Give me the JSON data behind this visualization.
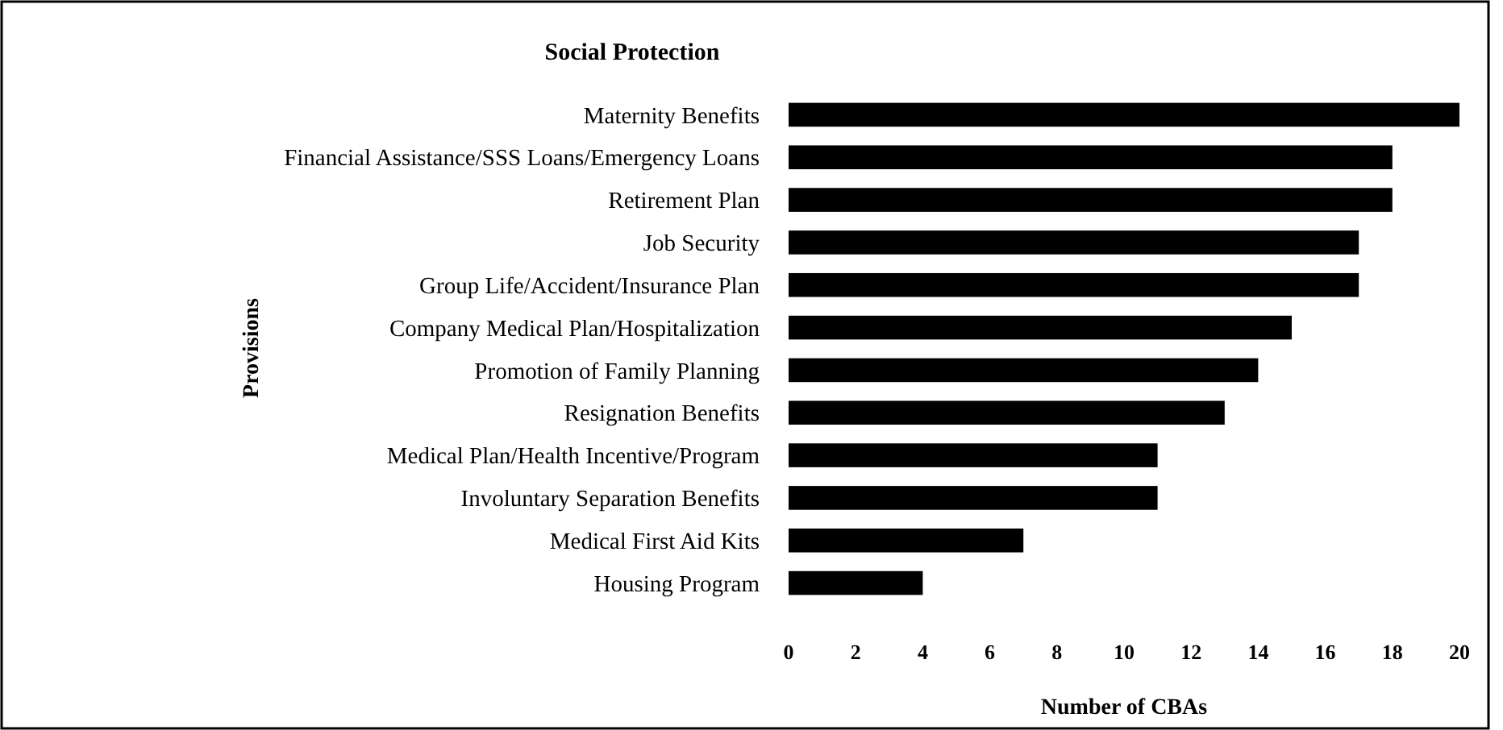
{
  "chart_data": {
    "type": "bar",
    "orientation": "horizontal",
    "title": "Social Protection",
    "xlabel": "Number of CBAs",
    "ylabel": "Provisions",
    "categories": [
      "Maternity Benefits",
      "Financial Assistance/SSS Loans/Emergency Loans",
      "Retirement Plan",
      "Job Security",
      "Group Life/Accident/Insurance Plan",
      "Company Medical Plan/Hospitalization",
      "Promotion of Family Planning",
      "Resignation Benefits",
      "Medical Plan/Health Incentive/Program",
      "Involuntary Separation Benefits",
      "Medical First Aid Kits",
      "Housing Program"
    ],
    "values": [
      20,
      18,
      18,
      17,
      17,
      15,
      14,
      13,
      11,
      11,
      7,
      4
    ],
    "color": "#000000",
    "xlim": [
      0,
      20
    ],
    "xticks": [
      0,
      2,
      4,
      6,
      8,
      10,
      12,
      14,
      16,
      18,
      20
    ],
    "grid": false
  }
}
